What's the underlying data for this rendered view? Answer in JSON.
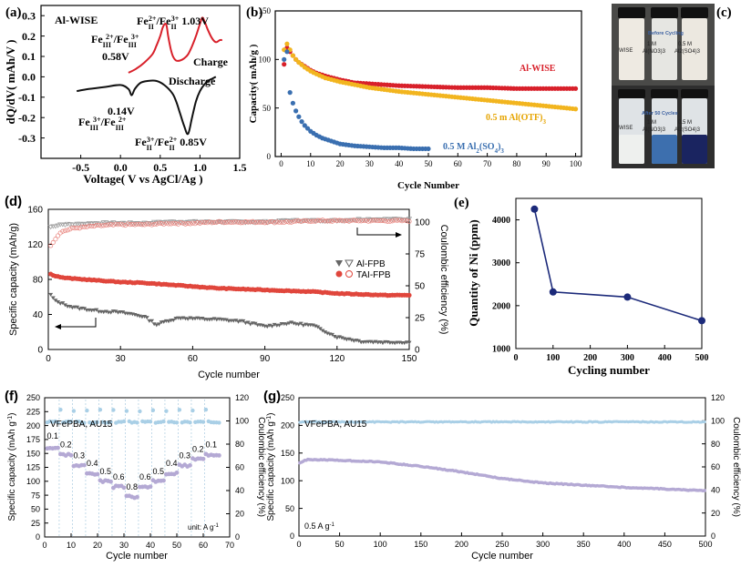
{
  "chart_data": [
    {
      "id": "a",
      "type": "line",
      "panel_label": "(a)",
      "title": "Al-WISE",
      "xlabel": "Voltage( V vs AgCl/Ag )",
      "ylabel": "dQ/dV( mAh/V )",
      "xlim": [
        -1.0,
        1.5
      ],
      "ylim": [
        -0.4,
        0.35
      ],
      "xticks": [
        -0.5,
        0.0,
        0.5,
        1.0,
        1.5
      ],
      "yticks": [
        -0.3,
        -0.2,
        -0.1,
        0.0,
        0.1,
        0.2,
        0.3
      ],
      "series": [
        {
          "name": "Charge",
          "color": "#d8202a",
          "x": [
            0.1,
            0.2,
            0.3,
            0.4,
            0.45,
            0.5,
            0.53,
            0.56,
            0.58,
            0.6,
            0.63,
            0.66,
            0.7,
            0.75,
            0.8,
            0.85,
            0.9,
            0.95,
            1.0,
            1.03,
            1.06,
            1.1,
            1.15,
            1.2,
            1.25,
            1.28
          ],
          "y": [
            0.02,
            0.04,
            0.07,
            0.11,
            0.15,
            0.2,
            0.24,
            0.26,
            0.25,
            0.2,
            0.14,
            0.1,
            0.08,
            0.08,
            0.09,
            0.11,
            0.15,
            0.2,
            0.26,
            0.29,
            0.27,
            0.23,
            0.19,
            0.17,
            0.18,
            0.18
          ]
        },
        {
          "name": "Discharge",
          "color": "#111111",
          "x": [
            -0.55,
            -0.4,
            -0.2,
            0.0,
            0.1,
            0.14,
            0.18,
            0.25,
            0.35,
            0.45,
            0.55,
            0.65,
            0.7,
            0.75,
            0.8,
            0.85,
            0.9,
            0.95,
            1.0,
            1.05,
            1.1,
            1.15,
            1.2
          ],
          "y": [
            -0.07,
            -0.06,
            -0.05,
            -0.04,
            -0.06,
            -0.09,
            -0.06,
            -0.03,
            -0.02,
            -0.02,
            -0.04,
            -0.08,
            -0.12,
            -0.18,
            -0.24,
            -0.28,
            -0.2,
            -0.12,
            -0.07,
            -0.04,
            -0.02,
            -0.01,
            0.0
          ]
        }
      ],
      "annotations": {
        "peak_left": {
          "pre": "Fe",
          "sub1": "III",
          "sup1": "2+",
          "mid": "/Fe",
          "sub2": "III",
          "sup2": "3+"
        },
        "v058": "0.58V",
        "peak_right": {
          "pre": "Fe",
          "sub1": "II",
          "sup1": "2+",
          "mid": "/Fe",
          "sub2": "II",
          "sup2": "3+",
          "post": " 1.03V"
        },
        "charge": "Charge",
        "discharge": "Discharge",
        "valley_left": {
          "pre": "Fe",
          "sub1": "III",
          "sup1": "3+",
          "mid": "/Fe",
          "sub2": "III",
          "sup2": "2+"
        },
        "v014": "0.14V",
        "valley_right": {
          "pre": "Fe",
          "sub1": "II",
          "sup1": "3+",
          "mid": "/Fe",
          "sub2": "II",
          "sup2": "2+",
          "post": " 0.85V"
        }
      }
    },
    {
      "id": "b",
      "type": "scatter",
      "panel_label": "(b)",
      "xlabel": "Cycle Number",
      "ylabel": "Capacity( mAh/g )",
      "xlim": [
        -2,
        102
      ],
      "ylim": [
        0,
        150
      ],
      "xticks": [
        0,
        10,
        20,
        30,
        40,
        50,
        60,
        70,
        80,
        90,
        100
      ],
      "yticks": [
        0,
        50,
        100,
        150
      ],
      "series": [
        {
          "name": "Al-WISE",
          "color": "#d8202a",
          "x": [
            1,
            2,
            3,
            4,
            5,
            6,
            8,
            10,
            12,
            15,
            20,
            25,
            30,
            40,
            50,
            60,
            70,
            80,
            90,
            100
          ],
          "y": [
            95,
            112,
            108,
            104,
            100,
            97,
            93,
            89,
            86,
            83,
            79,
            76,
            75,
            73,
            72,
            71,
            71,
            70,
            70,
            70
          ]
        },
        {
          "name": "0.5 m Al(OTF)3",
          "color": "#f2b51f",
          "label_pre": "0.5 m Al(OTF)",
          "label_sub": "3",
          "x": [
            1,
            2,
            3,
            4,
            5,
            6,
            8,
            10,
            12,
            15,
            20,
            25,
            30,
            40,
            50,
            60,
            70,
            80,
            90,
            100
          ],
          "y": [
            110,
            116,
            110,
            104,
            100,
            97,
            92,
            88,
            85,
            81,
            77,
            74,
            71,
            67,
            64,
            61,
            58,
            55,
            52,
            49
          ]
        },
        {
          "name": "0.5 M Al2(SO4)3",
          "color": "#3a6fb0",
          "label_pre": "0.5 M Al",
          "label_sub": "2",
          "label_mid": "(SO",
          "label_sub2": "4",
          "label_post": ")",
          "label_sub3": "3",
          "x": [
            1,
            2,
            3,
            4,
            5,
            6,
            7,
            8,
            9,
            10,
            12,
            14,
            16,
            18,
            20,
            25,
            30,
            35,
            40,
            45,
            50
          ],
          "y": [
            100,
            108,
            66,
            55,
            47,
            41,
            36,
            32,
            29,
            26,
            22,
            19,
            17,
            15,
            13,
            11,
            10,
            9,
            9,
            8,
            8
          ]
        }
      ]
    },
    {
      "id": "c",
      "type": "photo",
      "panel_label": "(c)",
      "top_caption": "Before Cycling",
      "bottom_caption": "After 50 Cycles",
      "vial_labels": [
        "WISE",
        "1 M",
        "Al(NO3)3",
        "0.5 M",
        "Al2(SO4)3"
      ],
      "vials": [
        {
          "label": "WISE",
          "before": "#eeeae2",
          "after": "#eef0ee"
        },
        {
          "label": "1 M Al(NO3)3",
          "before": "#e6e6e2",
          "after": "#3d6fae"
        },
        {
          "label": "0.5 M Al2(SO4)3",
          "before": "#ece8e0",
          "after": "#1a2460"
        }
      ]
    },
    {
      "id": "d",
      "type": "scatter",
      "panel_label": "(d)",
      "xlabel": "Cycle number",
      "ylabel": "Specific capacity (mAh/g)",
      "y2label": "Coulombic efficiency (%)",
      "xlim": [
        0,
        150
      ],
      "ylim": [
        0,
        160
      ],
      "y2lim": [
        0,
        110
      ],
      "xticks": [
        0,
        30,
        60,
        90,
        120,
        150
      ],
      "yticks": [
        0,
        40,
        80,
        120,
        160
      ],
      "y2ticks": [
        0,
        25,
        50,
        75,
        100
      ],
      "series": [
        {
          "name": "Al-FPB",
          "color": "#666666",
          "marker": "triangle-down",
          "x": [
            1,
            3,
            6,
            10,
            15,
            20,
            25,
            30,
            35,
            40,
            45,
            50,
            55,
            60,
            70,
            80,
            90,
            100,
            110,
            120,
            130,
            140,
            150
          ],
          "y": [
            62,
            55,
            52,
            48,
            46,
            44,
            43,
            42,
            40,
            37,
            28,
            33,
            36,
            35,
            34,
            32,
            26,
            30,
            27,
            14,
            9,
            8,
            8
          ]
        },
        {
          "name": "TAI-FPB",
          "color": "#e0463c",
          "marker": "circle",
          "x": [
            1,
            3,
            6,
            10,
            20,
            30,
            40,
            50,
            60,
            70,
            80,
            90,
            100,
            110,
            120,
            130,
            140,
            150
          ],
          "y": [
            86,
            84,
            82,
            81,
            79,
            77,
            76,
            74,
            72,
            70,
            69,
            68,
            67,
            66,
            64,
            63,
            62,
            62
          ]
        }
      ],
      "ce_series": [
        {
          "name": "Al-FPB CE",
          "color": "#9a9a9a",
          "x": [
            1,
            5,
            10,
            20,
            30,
            40,
            50,
            60,
            70,
            80,
            90,
            100,
            110,
            120,
            130,
            140,
            150
          ],
          "y": [
            96,
            98,
            98,
            99,
            99,
            99,
            100,
            100,
            100,
            100,
            100,
            101,
            101,
            101,
            102,
            102,
            102
          ]
        },
        {
          "name": "TAI-FPB CE",
          "color": "#e8807a",
          "x": [
            1,
            5,
            10,
            20,
            30,
            40,
            50,
            60,
            70,
            80,
            90,
            100,
            110,
            120,
            130,
            140,
            150
          ],
          "y": [
            82,
            92,
            95,
            97,
            98,
            98,
            99,
            99,
            100,
            100,
            100,
            100,
            101,
            101,
            101,
            101,
            101
          ]
        }
      ],
      "legend": [
        {
          "text": "Al-FPB",
          "marker": "triangle-down",
          "color": "#666666",
          "open_marker": "triangle-down-open"
        },
        {
          "text": "TAI-FPB",
          "marker": "circle",
          "color": "#e0463c",
          "open_marker": "circle-open"
        }
      ]
    },
    {
      "id": "e",
      "type": "line",
      "panel_label": "(e)",
      "xlabel": "Cycling number",
      "ylabel": "Quantity of Ni (ppm)",
      "xlim": [
        0,
        500
      ],
      "ylim": [
        1000,
        4500
      ],
      "xticks": [
        0,
        100,
        200,
        300,
        400,
        500
      ],
      "yticks": [
        1000,
        2000,
        3000,
        4000
      ],
      "x": [
        50,
        100,
        300,
        500
      ],
      "y": [
        4250,
        2320,
        2200,
        1650
      ],
      "color": "#1c2a7a"
    },
    {
      "id": "f",
      "type": "scatter",
      "panel_label": "(f)",
      "title": "VFePBA, AU15",
      "xlabel": "Cycle number",
      "ylabel": "Specific capacity (mAh g-1)",
      "y2label": "Coulombic efficiency (%)",
      "ylabel_pre": "Specific capacity (mAh g",
      "ylabel_sup": "-1",
      "ylabel_post": ")",
      "xlim": [
        0,
        70
      ],
      "ylim": [
        0,
        250
      ],
      "y2lim": [
        0,
        120
      ],
      "xticks": [
        0,
        10,
        20,
        30,
        40,
        50,
        60,
        70
      ],
      "yticks": [
        0,
        25,
        50,
        75,
        100,
        125,
        150,
        175,
        200,
        225,
        250
      ],
      "y2ticks": [
        0,
        20,
        40,
        60,
        80,
        100,
        120
      ],
      "unit_note": "unit: A g-1",
      "unit_pre": "unit: A g",
      "unit_sup": "-1",
      "rates": [
        "0.1",
        "0.2",
        "0.3",
        "0.4",
        "0.5",
        "0.6",
        "0.8",
        "0.6",
        "0.5",
        "0.4",
        "0.3",
        "0.2",
        "0.1"
      ],
      "rate_capacity": [
        160,
        148,
        128,
        114,
        100,
        90,
        72,
        90,
        100,
        114,
        128,
        140,
        148
      ],
      "ce_mean": 99,
      "capacity_color": "#b4a9d4",
      "ce_color": "#a9cfe6"
    },
    {
      "id": "g",
      "type": "scatter",
      "panel_label": "(g)",
      "title": "VFePBA, AU15",
      "xlabel": "Cycle number",
      "ylabel": "Specific capacity (mAh g-1)",
      "y2label": "Coulombic efficiency (%)",
      "ylabel_pre": "Specific capacity (mAh g",
      "ylabel_sup": "-1",
      "ylabel_post": ")",
      "xlim": [
        0,
        500
      ],
      "ylim": [
        0,
        250
      ],
      "y2lim": [
        0,
        120
      ],
      "xticks": [
        0,
        50,
        100,
        150,
        200,
        250,
        300,
        350,
        400,
        450,
        500
      ],
      "yticks": [
        0,
        50,
        100,
        150,
        200,
        250
      ],
      "y2ticks": [
        0,
        20,
        40,
        60,
        80,
        100,
        120
      ],
      "rate_note": "0.5 A g-1",
      "rate_pre": "0.5 A g",
      "rate_sup": "-1",
      "x": [
        0,
        10,
        20,
        50,
        100,
        150,
        200,
        250,
        300,
        350,
        400,
        450,
        500
      ],
      "y": [
        132,
        138,
        138,
        137,
        134,
        126,
        116,
        104,
        96,
        92,
        88,
        85,
        82
      ],
      "ce_mean": 99,
      "capacity_color": "#b4a9d4",
      "ce_color": "#a9cfe6"
    }
  ]
}
